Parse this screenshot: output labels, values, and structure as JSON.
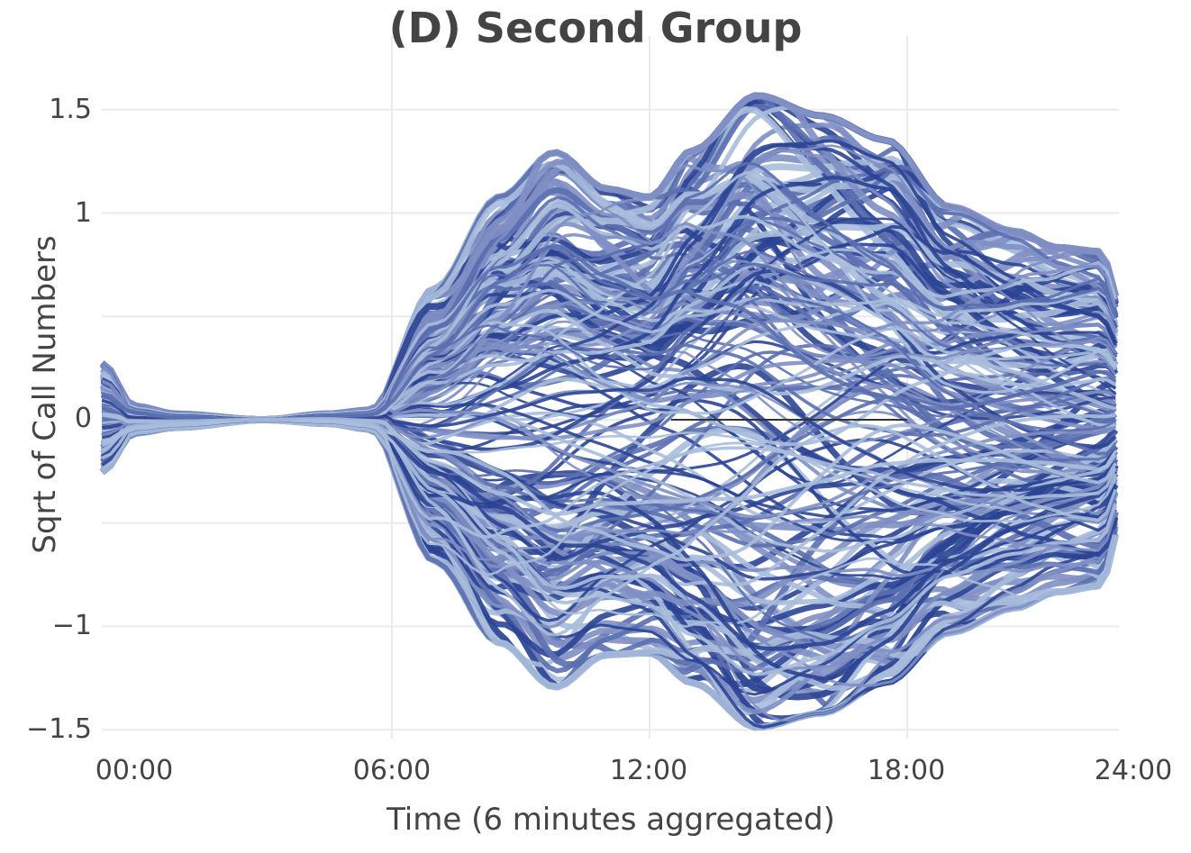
{
  "chart_data": {
    "type": "line",
    "title": "(D) Second Group",
    "xlabel": "Time (6 minutes aggregated)",
    "ylabel": "Sqrt of Call Numbers",
    "x_ticks": [
      "00:00",
      "06:00",
      "12:00",
      "18:00",
      "24:00"
    ],
    "y_ticks": [
      1.5,
      1,
      0,
      -1,
      -1.5
    ],
    "y_tick_labels": [
      "1.5",
      "1",
      "0",
      "−1",
      "−1.5"
    ],
    "ylim": [
      -1.55,
      1.65
    ],
    "xlim_hours": [
      -0.75,
      23.0
    ],
    "grid": true,
    "legend": "none",
    "n_series_approx": 200,
    "series_colors": [
      "#2b4494",
      "#5b6fb0",
      "#7f8fc4",
      "#a9bcdc"
    ],
    "reference_line": {
      "y": 0,
      "x_from_hours": 12.5,
      "x_to_hours": 18.0,
      "color": "#333333"
    },
    "envelope": {
      "description": "Upper/lower envelope of all series (sqrt-scaled, centered)",
      "hours": [
        -0.75,
        0.0,
        1.0,
        3.0,
        4.5,
        5.5,
        7.0,
        8.5,
        9.8,
        11.0,
        12.0,
        13.0,
        14.5,
        16.0,
        17.5,
        19.0,
        20.5,
        21.5,
        22.5,
        23.0
      ],
      "upper": [
        0.28,
        0.07,
        0.03,
        0.0,
        0.03,
        0.05,
        0.65,
        1.1,
        1.32,
        1.14,
        1.1,
        1.33,
        1.6,
        1.5,
        1.38,
        1.05,
        0.93,
        0.85,
        0.83,
        0.55
      ],
      "lower": [
        -0.26,
        -0.07,
        -0.04,
        0.0,
        -0.02,
        -0.05,
        -0.7,
        -1.1,
        -1.32,
        -1.16,
        -1.15,
        -1.3,
        -1.52,
        -1.45,
        -1.3,
        -1.05,
        -0.93,
        -0.85,
        -0.82,
        -0.5
      ]
    }
  }
}
